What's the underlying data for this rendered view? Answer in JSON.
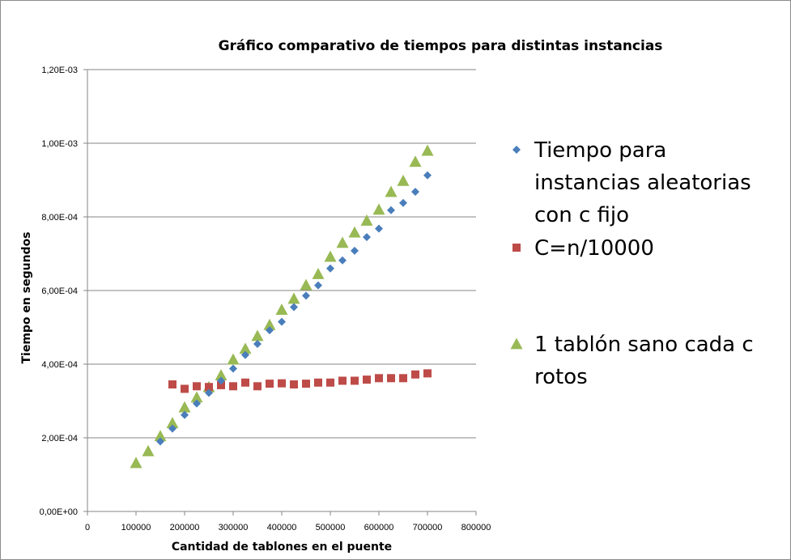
{
  "chart_data": {
    "type": "scatter",
    "title": "Gráfico comparativo de tiempos para distintas instancias",
    "xlabel": "Cantidad de tablones en el puente",
    "ylabel": "Tiempo en segundos",
    "xlim": [
      0,
      800000
    ],
    "ylim": [
      0,
      0.0012
    ],
    "x_ticks": [
      0,
      100000,
      200000,
      300000,
      400000,
      500000,
      600000,
      700000,
      800000
    ],
    "x_tick_labels": [
      "0",
      "100000",
      "200000",
      "300000",
      "400000",
      "500000",
      "600000",
      "700000",
      "800000"
    ],
    "y_ticks": [
      0,
      0.0002,
      0.0004,
      0.0006,
      0.0008,
      0.001,
      0.0012
    ],
    "y_tick_labels": [
      "0,00E+00",
      "2,00E-04",
      "4,00E-04",
      "6,00E-04",
      "8,00E-04",
      "1,00E-03",
      "1,20E-03"
    ],
    "grid": "horizontal",
    "legend_position": "right",
    "series": [
      {
        "name": "Tiempo para instancias aleatorias con c fijo",
        "marker": "diamond",
        "color": "#4a7ebb",
        "points": [
          [
            150000,
            0.00019
          ],
          [
            175000,
            0.000225
          ],
          [
            200000,
            0.000262
          ],
          [
            225000,
            0.000293
          ],
          [
            250000,
            0.000322
          ],
          [
            275000,
            0.000355
          ],
          [
            300000,
            0.000388
          ],
          [
            325000,
            0.000425
          ],
          [
            350000,
            0.000455
          ],
          [
            375000,
            0.000492
          ],
          [
            400000,
            0.000515
          ],
          [
            425000,
            0.000555
          ],
          [
            450000,
            0.000586
          ],
          [
            475000,
            0.000614
          ],
          [
            500000,
            0.00066
          ],
          [
            525000,
            0.000682
          ],
          [
            550000,
            0.000708
          ],
          [
            575000,
            0.000745
          ],
          [
            600000,
            0.000768
          ],
          [
            625000,
            0.000818
          ],
          [
            650000,
            0.000838
          ],
          [
            675000,
            0.000868
          ],
          [
            700000,
            0.000913
          ]
        ]
      },
      {
        "name": "C=n/10000",
        "marker": "square",
        "color": "#be4b48",
        "points": [
          [
            175000,
            0.000345
          ],
          [
            200000,
            0.000333
          ],
          [
            225000,
            0.00034
          ],
          [
            250000,
            0.000338
          ],
          [
            275000,
            0.000343
          ],
          [
            300000,
            0.00034
          ],
          [
            325000,
            0.00035
          ],
          [
            350000,
            0.00034
          ],
          [
            375000,
            0.000347
          ],
          [
            400000,
            0.000348
          ],
          [
            425000,
            0.000345
          ],
          [
            450000,
            0.000347
          ],
          [
            475000,
            0.00035
          ],
          [
            500000,
            0.00035
          ],
          [
            525000,
            0.000355
          ],
          [
            550000,
            0.000355
          ],
          [
            575000,
            0.000358
          ],
          [
            600000,
            0.000362
          ],
          [
            625000,
            0.000362
          ],
          [
            650000,
            0.000362
          ],
          [
            675000,
            0.000372
          ],
          [
            700000,
            0.000375
          ]
        ]
      },
      {
        "name": "1 tablón sano cada c rotos",
        "marker": "triangle",
        "color": "#98b954",
        "points": [
          [
            100000,
            0.000132
          ],
          [
            125000,
            0.000164
          ],
          [
            150000,
            0.000205
          ],
          [
            175000,
            0.00024
          ],
          [
            200000,
            0.000283
          ],
          [
            225000,
            0.00031
          ],
          [
            250000,
            0.000338
          ],
          [
            275000,
            0.00037
          ],
          [
            300000,
            0.000413
          ],
          [
            325000,
            0.000442
          ],
          [
            350000,
            0.000477
          ],
          [
            375000,
            0.000507
          ],
          [
            400000,
            0.000548
          ],
          [
            425000,
            0.000578
          ],
          [
            450000,
            0.000615
          ],
          [
            475000,
            0.000645
          ],
          [
            500000,
            0.000692
          ],
          [
            525000,
            0.00073
          ],
          [
            550000,
            0.000758
          ],
          [
            575000,
            0.00079
          ],
          [
            600000,
            0.00082
          ],
          [
            625000,
            0.000868
          ],
          [
            650000,
            0.000898
          ],
          [
            675000,
            0.00095
          ],
          [
            700000,
            0.00098
          ]
        ]
      }
    ],
    "legend_lines": [
      [
        "Tiempo para",
        "instancias aleatorias",
        "con c fijo"
      ],
      [
        "C=n/10000"
      ],
      [
        "1 tablón sano cada c",
        "rotos"
      ]
    ]
  }
}
